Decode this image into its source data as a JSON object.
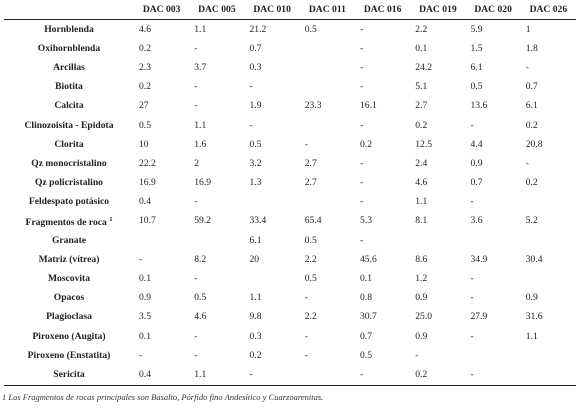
{
  "table": {
    "columns": [
      "DAC 003",
      "DAC 005",
      "DAC 010",
      "DAC 011",
      "DAC 016",
      "DAC 019",
      "DAC 020",
      "DAC 026"
    ],
    "rows": [
      {
        "name": "Hornblenda",
        "sup": "",
        "values": [
          "4.6",
          "1.1",
          "21.2",
          "0.5",
          "-",
          "2.2",
          "5.9",
          "1"
        ]
      },
      {
        "name": "Oxihornblenda",
        "sup": "",
        "values": [
          "0.2",
          "-",
          "0.7",
          "",
          "-",
          "0.1",
          "1.5",
          "1.8"
        ]
      },
      {
        "name": "Arcillas",
        "sup": "",
        "values": [
          "2.3",
          "3.7",
          "0.3",
          "",
          "-",
          "24.2",
          "6.1",
          "-"
        ]
      },
      {
        "name": "Biotita",
        "sup": "",
        "values": [
          "0.2",
          "-",
          "-",
          "",
          "-",
          "5.1",
          "0.5",
          "0.7"
        ]
      },
      {
        "name": "Calcita",
        "sup": "",
        "values": [
          "27",
          "-",
          "1.9",
          "23.3",
          "16.1",
          "2.7",
          "13.6",
          "6.1"
        ]
      },
      {
        "name": "Clinozoisita - Epidota",
        "sup": "",
        "values": [
          "0.5",
          "1.1",
          "-",
          "",
          "-",
          "0.2",
          "-",
          "0.2"
        ]
      },
      {
        "name": "Clorita",
        "sup": "",
        "values": [
          "10",
          "1.6",
          "0.5",
          "-",
          "0.2",
          "12.5",
          "4.4",
          "20.8"
        ]
      },
      {
        "name": "Qz monocristalino",
        "sup": "",
        "values": [
          "22.2",
          "2",
          "3.2",
          "2.7",
          "-",
          "2.4",
          "0.9",
          "-"
        ]
      },
      {
        "name": "Qz policristalino",
        "sup": "",
        "values": [
          "16.9",
          "16.9",
          "1.3",
          "2.7",
          "-",
          "4.6",
          "0.7",
          "0.2"
        ]
      },
      {
        "name": "Feldespato potásico",
        "sup": "",
        "values": [
          "0.4",
          "-",
          "",
          "",
          "-",
          "1.1",
          "-",
          ""
        ]
      },
      {
        "name": "Fragmentos de roca",
        "sup": "1",
        "values": [
          "10.7",
          "59.2",
          "33.4",
          "65.4",
          "5.3",
          "8.1",
          "3.6",
          "5.2"
        ]
      },
      {
        "name": "Granate",
        "sup": "",
        "values": [
          "",
          "",
          "6.1",
          "0.5",
          "-",
          "",
          "",
          ""
        ]
      },
      {
        "name": "Matriz (vítrea)",
        "sup": "",
        "values": [
          "-",
          "8.2",
          "20",
          "2.2",
          "45.6",
          "8.6",
          "34.9",
          "30.4"
        ]
      },
      {
        "name": "Moscovita",
        "sup": "",
        "values": [
          "0.1",
          "-",
          "",
          "0.5",
          "0.1",
          "1.2",
          "-",
          ""
        ]
      },
      {
        "name": "Opacos",
        "sup": "",
        "values": [
          "0.9",
          "0.5",
          "1.1",
          "-",
          "0.8",
          "0.9",
          "-",
          "0.9"
        ]
      },
      {
        "name": "Plagioclasa",
        "sup": "",
        "values": [
          "3.5",
          "4.6",
          "9.8",
          "2.2",
          "30.7",
          "25.0",
          "27.9",
          "31.6"
        ]
      },
      {
        "name": "Piroxeno (Augita)",
        "sup": "",
        "values": [
          "0.1",
          "-",
          "0.3",
          "-",
          "0.7",
          "0.9",
          "-",
          "1.1"
        ]
      },
      {
        "name": "Piroxeno (Enstatita)",
        "sup": "",
        "values": [
          "-",
          "-",
          "0.2",
          "-",
          "0.5",
          "-",
          "",
          ""
        ]
      },
      {
        "name": "Sericita",
        "sup": "",
        "values": [
          "0.4",
          "1.1",
          "-",
          "",
          "-",
          "0.2",
          "-",
          ""
        ]
      }
    ]
  },
  "footnote": "1 Los Fragmentos de rocas principales son Basalto, Pórfido fino Andesítico y Cuarzoarenitas."
}
